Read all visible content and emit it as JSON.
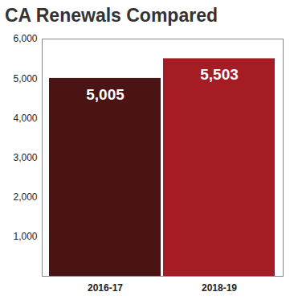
{
  "chart_data": {
    "type": "bar",
    "title": "CA Renewals Compared",
    "categories": [
      "2016-17",
      "2018-19"
    ],
    "values": [
      5005,
      5503
    ],
    "value_labels": [
      "5,005",
      "5,503"
    ],
    "colors": [
      "#4a1414",
      "#a51c24"
    ],
    "ylim": [
      0,
      6000
    ],
    "yticks": [
      {
        "value": 1000,
        "label": "1,000"
      },
      {
        "value": 2000,
        "label": "2,000"
      },
      {
        "value": 3000,
        "label": "3,000"
      },
      {
        "value": 4000,
        "label": "4,000"
      },
      {
        "value": 5000,
        "label": "5,000"
      },
      {
        "value": 6000,
        "label": "6,000"
      }
    ],
    "grid": false,
    "data_labels": true
  }
}
